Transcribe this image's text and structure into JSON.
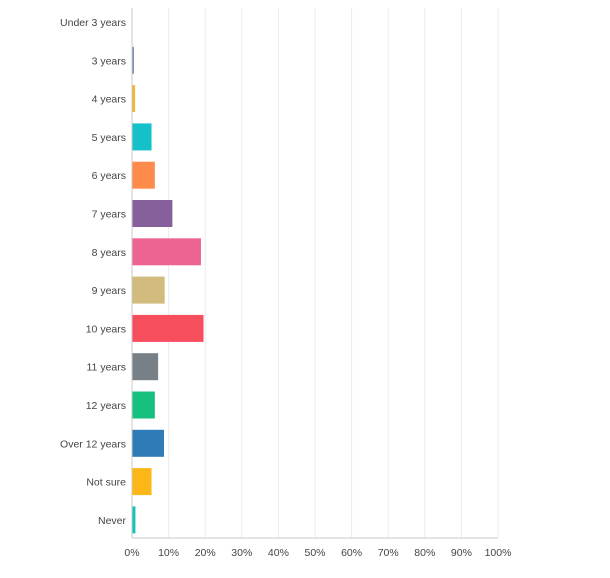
{
  "chart_data": {
    "type": "bar",
    "orientation": "horizontal",
    "title": "",
    "xlabel": "",
    "ylabel": "",
    "xlim": [
      0,
      100
    ],
    "x_ticks": [
      "0%",
      "10%",
      "20%",
      "30%",
      "40%",
      "50%",
      "60%",
      "70%",
      "80%",
      "90%",
      "100%"
    ],
    "grid": true,
    "categories": [
      "Under 3 years",
      "3 years",
      "4 years",
      "5 years",
      "6 years",
      "7 years",
      "8 years",
      "9 years",
      "10 years",
      "11 years",
      "12 years",
      "Over 12 years",
      "Not sure",
      "Never"
    ],
    "values": [
      0,
      0.4,
      0.7,
      5.2,
      6.1,
      10.9,
      18.7,
      8.8,
      19.4,
      7.0,
      6.1,
      8.6,
      5.2,
      0.8
    ],
    "colors": [
      "#3d95cf",
      "#7a8fb0",
      "#f6b42a",
      "#15c1c8",
      "#fe8b4c",
      "#86609b",
      "#ed6493",
      "#d2bc7d",
      "#f74e5e",
      "#778087",
      "#16c07f",
      "#2e7bb8",
      "#fbb717",
      "#16c2bb"
    ]
  }
}
